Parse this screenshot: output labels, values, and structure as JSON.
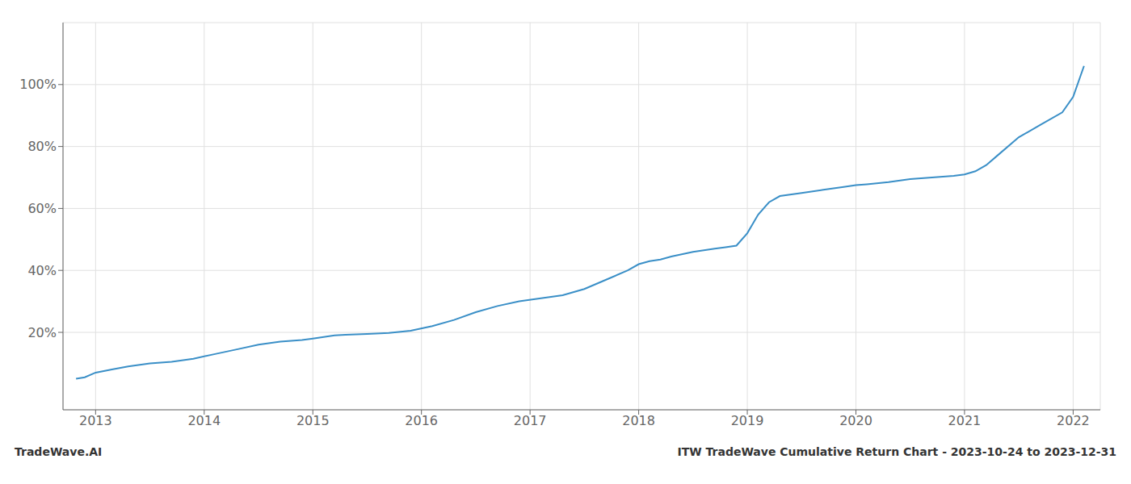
{
  "chart_data": {
    "type": "line",
    "title": "ITW TradeWave Cumulative Return Chart - 2023-10-24 to 2023-12-31",
    "annotations": [
      "TradeWave.AI"
    ],
    "x": [
      2012.82,
      2012.9,
      2013.0,
      2013.15,
      2013.3,
      2013.5,
      2013.7,
      2013.9,
      2014.1,
      2014.3,
      2014.5,
      2014.7,
      2014.9,
      2015.0,
      2015.1,
      2015.2,
      2015.3,
      2015.5,
      2015.7,
      2015.9,
      2016.1,
      2016.3,
      2016.5,
      2016.7,
      2016.9,
      2017.1,
      2017.3,
      2017.5,
      2017.7,
      2017.9,
      2018.0,
      2018.1,
      2018.2,
      2018.3,
      2018.5,
      2018.7,
      2018.8,
      2018.9,
      2019.0,
      2019.1,
      2019.2,
      2019.3,
      2019.5,
      2019.7,
      2019.9,
      2020.0,
      2020.1,
      2020.3,
      2020.5,
      2020.7,
      2020.9,
      2021.0,
      2021.1,
      2021.2,
      2021.3,
      2021.5,
      2021.7,
      2021.9,
      2022.0,
      2022.1
    ],
    "values": [
      5,
      5.5,
      7,
      8,
      9,
      10,
      10.5,
      11.5,
      13,
      14.5,
      16,
      17,
      17.5,
      18,
      18.5,
      19,
      19.2,
      19.5,
      19.8,
      20.5,
      22,
      24,
      26.5,
      28.5,
      30,
      31,
      32,
      34,
      37,
      40,
      42,
      43,
      43.5,
      44.5,
      46,
      47,
      47.5,
      48,
      52,
      58,
      62,
      64,
      65,
      66,
      67,
      67.5,
      67.8,
      68.5,
      69.5,
      70,
      70.5,
      71,
      72,
      74,
      77,
      83,
      87,
      91,
      96,
      106
    ],
    "color": "#3a8fc7",
    "xlim": [
      2012.7,
      2022.25
    ],
    "xticks": [
      2013,
      2014,
      2015,
      2016,
      2017,
      2018,
      2019,
      2020,
      2021,
      2022
    ],
    "ylim": [
      -5,
      120
    ],
    "yticks": [
      {
        "value": 20,
        "label": "20%"
      },
      {
        "value": 40,
        "label": "40%"
      },
      {
        "value": 60,
        "label": "60%"
      },
      {
        "value": 80,
        "label": "80%"
      },
      {
        "value": 100,
        "label": "100%"
      }
    ],
    "grid": true
  }
}
